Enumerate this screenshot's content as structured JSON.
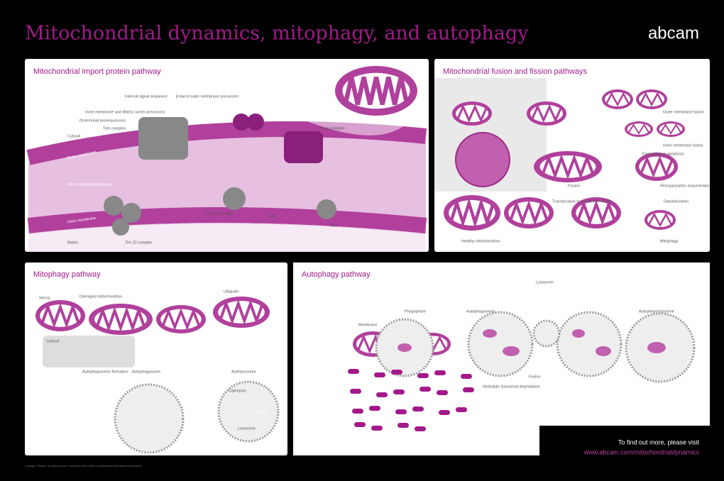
{
  "header": {
    "title": "Mitochondrial dynamics, mitophagy, and autophagy",
    "brand": "abcam"
  },
  "panels": [
    {
      "title": "Mitochondrial import protein pathway",
      "labels": [
        "Internal signal sequence",
        "β-barrel outer membrane precursors",
        "Inner membrane and Matrix carrier precursors",
        "(N-terminal presequences)",
        "Tom complex",
        "Sam complex",
        "Cytosol",
        "Outer membrane",
        "Inner mitochondrial space",
        "Inner membrane",
        "Tim 22 complex",
        "Mia",
        "Oxa",
        "Matrix",
        "Tim 23 complex"
      ]
    },
    {
      "title": "Mitochondrial fusion and fission pathways",
      "labels": [
        "Outer membrane fusion",
        "Inner membrane fusion",
        "Fission/fusion apoptosis",
        "Reorganization sequestration",
        "Translocation to lowest ATP needs",
        "Depolarization",
        "Fission",
        "Healthy mitochondrion",
        "Mitophagy"
      ]
    },
    {
      "title": "Mitophagy pathway",
      "labels": [
        "Stress",
        "Damaged mitochondrion",
        "Cytosol",
        "Ubiquitin",
        "Autophagosome formation",
        "Autophagosome",
        "Autolysosome",
        "Cathepsin",
        "Lipase",
        "Lysosome"
      ]
    },
    {
      "title": "Autophagy pathway",
      "labels": [
        "Lysosome",
        "Phagophore",
        "Autophagosome",
        "Autophagolysosome",
        "Membrane",
        "Fusion",
        "Hydrolytic lysosomal degradation"
      ]
    }
  ],
  "footer": {
    "visit": "To find out more, please visit",
    "url": "www.abcam.com/mitochondrialdynamics",
    "copyright": "Copyright © Abcam. All rights reserved. This poster was created in collaboration with Mitochondrial experts."
  }
}
